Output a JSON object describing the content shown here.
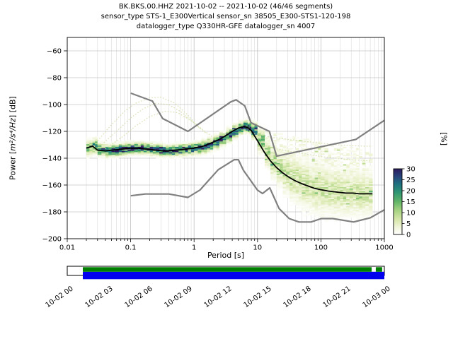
{
  "figure": {
    "title_line1": "BK.BKS.00.HHZ   2021-10-02 -- 2021-10-02  (46/46 segments)",
    "title_line2": "sensor_type STS-1_E300Vertical sensor_sn 38505_E300-STS1-120-198",
    "title_line3": "datalogger_type Q330HR-GFE datalogger_sn 4007"
  },
  "chart_data": {
    "type": "heatmap",
    "title": "BK.BKS.00.HHZ   2021-10-02 -- 2021-10-02  (46/46 segments)",
    "xlabel": "Period [s]",
    "ylabel": {
      "prefix": "Power [",
      "math": "m²/s⁴/Hz",
      "suffix": "] [dB]"
    },
    "x_scale": "log",
    "xlim": [
      0.01,
      1000
    ],
    "ylim": [
      -200,
      -50
    ],
    "x_ticks": [
      0.01,
      0.1,
      1,
      10,
      100,
      1000
    ],
    "x_tick_labels": [
      "0.01",
      "0.1",
      "1",
      "10",
      "100",
      "1000"
    ],
    "y_ticks": [
      -60,
      -80,
      -100,
      -120,
      -140,
      -160,
      -180,
      -200
    ],
    "y_tick_labels": [
      "−60",
      "−80",
      "−100",
      "−120",
      "−140",
      "−160",
      "−180",
      "−200"
    ],
    "colorbar": {
      "label": "[%]",
      "ticks": [
        0,
        5,
        10,
        15,
        20,
        25,
        30
      ],
      "max": 30,
      "stops": [
        {
          "pos": 0.0,
          "color": "#ffffff"
        },
        {
          "pos": 0.1,
          "color": "#f2f6dd"
        },
        {
          "pos": 0.22,
          "color": "#d9e8ad"
        },
        {
          "pos": 0.36,
          "color": "#a9d483"
        },
        {
          "pos": 0.5,
          "color": "#62b567"
        },
        {
          "pos": 0.64,
          "color": "#2f9673"
        },
        {
          "pos": 0.77,
          "color": "#1f707f"
        },
        {
          "pos": 0.88,
          "color": "#27457c"
        },
        {
          "pos": 1.0,
          "color": "#2c1a5e"
        }
      ]
    },
    "psd_hist": {
      "periods": [
        0.02,
        0.025,
        0.03,
        0.04,
        0.05,
        0.065,
        0.08,
        0.1,
        0.13,
        0.16,
        0.2,
        0.25,
        0.32,
        0.4,
        0.5,
        0.65,
        0.8,
        1.0,
        1.3,
        1.6,
        2.0,
        2.5,
        3.2,
        4.0,
        5.0,
        6.0,
        7.0,
        8.0,
        10,
        13,
        16,
        20,
        25,
        32,
        40,
        50,
        65,
        80,
        100,
        130,
        160,
        200,
        250,
        320,
        400,
        500,
        650
      ],
      "mean": [
        -132.5,
        -131,
        -134,
        -134.5,
        -134,
        -133.5,
        -133,
        -132.5,
        -132.5,
        -133,
        -133.5,
        -134,
        -134.5,
        -134.5,
        -134,
        -133.5,
        -133,
        -132.5,
        -131.5,
        -130,
        -128,
        -126,
        -123,
        -120,
        -117.5,
        -116.5,
        -117,
        -119.5,
        -127,
        -136,
        -142,
        -147,
        -151,
        -154.5,
        -157,
        -159,
        -161,
        -162.5,
        -163.5,
        -164.5,
        -165,
        -165.5,
        -166,
        -166,
        -166.5,
        -166.5,
        -166.5
      ],
      "sigma": [
        3,
        3,
        2.5,
        2.3,
        2.3,
        2.3,
        2.3,
        2.2,
        2.2,
        2.2,
        2.2,
        2.2,
        2.2,
        2.2,
        2.2,
        2.2,
        2.2,
        2.3,
        2.4,
        2.5,
        2.5,
        2.5,
        2.5,
        2.4,
        2.2,
        2.2,
        2.3,
        3,
        4.5,
        5.5,
        6.5,
        7,
        8,
        9,
        9.5,
        10,
        10,
        10,
        10,
        9.5,
        9.5,
        9,
        9,
        9,
        8.5,
        8.5,
        8
      ],
      "peak_pct": [
        14,
        16,
        22,
        24,
        25,
        25,
        26,
        26,
        26,
        26,
        26,
        26,
        26,
        26,
        26,
        26,
        26,
        26,
        25,
        24,
        24,
        24,
        25,
        26,
        28,
        28,
        28,
        22,
        13,
        10,
        9,
        8,
        8,
        7,
        7,
        7,
        7,
        7,
        7,
        7,
        7,
        7,
        7,
        7,
        7,
        7,
        7
      ],
      "tail_top": [
        null,
        null,
        null,
        null,
        null,
        null,
        null,
        null,
        null,
        null,
        null,
        null,
        null,
        null,
        null,
        null,
        null,
        null,
        null,
        null,
        null,
        null,
        null,
        null,
        null,
        null,
        null,
        null,
        -121,
        -121,
        -122,
        -122,
        -123,
        -124,
        -125,
        -126,
        -127,
        -128,
        -128,
        -129,
        -130,
        -131,
        -132,
        -133,
        -134,
        -135,
        -136
      ],
      "tail_pct": 2.2
    },
    "noise_models": {
      "nhnm": {
        "periods": [
          0.1,
          0.22,
          0.32,
          0.8,
          3.8,
          4.6,
          6.3,
          7.9,
          15.4,
          20,
          354.8,
          1000
        ],
        "db": [
          -91.5,
          -97.4,
          -110.5,
          -120,
          -98,
          -96.5,
          -101,
          -113.5,
          -120,
          -138.5,
          -126,
          -111.8
        ]
      },
      "nlnm": {
        "periods": [
          0.1,
          0.17,
          0.4,
          0.8,
          1.24,
          2.4,
          4.3,
          5,
          6,
          10,
          12,
          15.6,
          21.9,
          31.6,
          45,
          70,
          101,
          154,
          328,
          600,
          1000
        ],
        "db": [
          -168,
          -166.7,
          -166.7,
          -169.2,
          -163.7,
          -148.6,
          -141.1,
          -141.1,
          -149,
          -163.8,
          -166.3,
          -162.1,
          -177.5,
          -185,
          -187.5,
          -187.5,
          -185,
          -185,
          -187.5,
          -184.4,
          -178.5
        ]
      }
    },
    "faint_traces": [
      {
        "periods": [
          0.03,
          0.05,
          0.08,
          0.12,
          0.2,
          0.3,
          0.5,
          0.8,
          1.3
        ],
        "db": [
          -127,
          -115,
          -105,
          -99,
          -95,
          -94.5,
          -99,
          -108,
          -119
        ]
      },
      {
        "periods": [
          0.035,
          0.06,
          0.1,
          0.16,
          0.25,
          0.4,
          0.65,
          1.0,
          1.6
        ],
        "db": [
          -130,
          -120,
          -110,
          -103,
          -99,
          -100,
          -106,
          -114,
          -122
        ]
      },
      {
        "periods": [
          0.04,
          0.07,
          0.12,
          0.2,
          0.35,
          0.55,
          0.9,
          1.4,
          2.2
        ],
        "db": [
          -133,
          -125,
          -116,
          -109,
          -105,
          -106,
          -112,
          -119,
          -126
        ]
      },
      {
        "periods": [
          8,
          15,
          30,
          70,
          180,
          450,
          650
        ],
        "db": [
          -121,
          -124,
          -126,
          -128,
          -130,
          -131,
          -131
        ]
      },
      {
        "periods": [
          10,
          20,
          45,
          110,
          280,
          600
        ],
        "db": [
          -129,
          -133,
          -136,
          -139,
          -141,
          -142
        ]
      }
    ],
    "coverage": {
      "coverage_color": "#007f00",
      "data_color": "#0000ee",
      "green_segments": [
        [
          0.049,
          0.96
        ],
        [
          0.973,
          0.993
        ]
      ],
      "blue_segments": [
        [
          0.049,
          1.0
        ]
      ],
      "time_labels": [
        "10-02 00",
        "10-02 03",
        "10-02 06",
        "10-02 09",
        "10-02 12",
        "10-02 15",
        "10-02 18",
        "10-02 21",
        "10-03 00"
      ]
    }
  }
}
